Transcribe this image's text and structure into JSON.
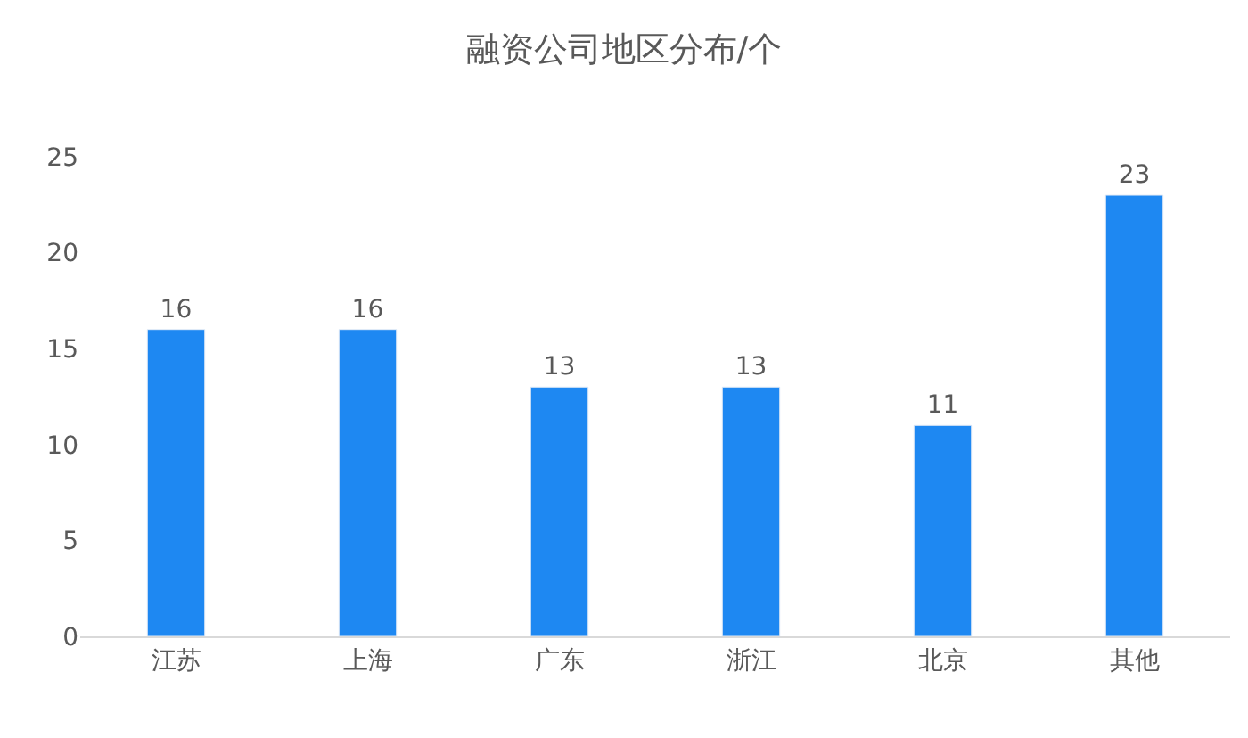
{
  "chart_data": {
    "type": "bar",
    "title": "融资公司地区分布/个",
    "categories": [
      "江苏",
      "上海",
      "广东",
      "浙江",
      "北京",
      "其他"
    ],
    "values": [
      16,
      16,
      13,
      13,
      11,
      23
    ],
    "color": "#1e88f2",
    "ylim": [
      0,
      25
    ],
    "yticks": [
      0,
      5,
      10,
      15,
      20,
      25
    ],
    "grid": false,
    "data_labels": true
  }
}
